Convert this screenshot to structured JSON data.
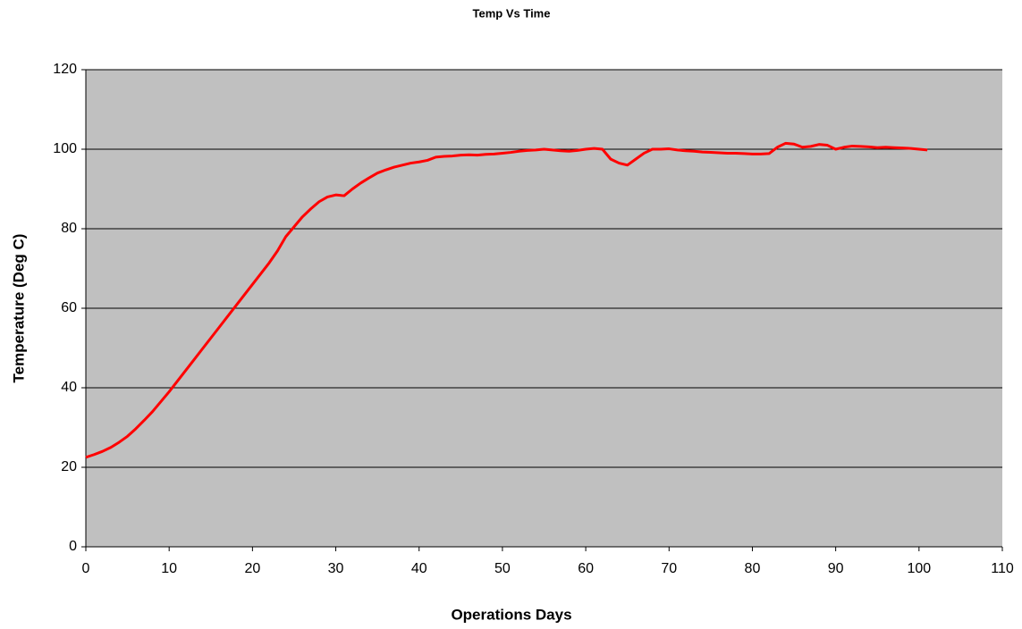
{
  "chart_data": {
    "type": "line",
    "title": "Temp Vs Time",
    "x_label": "Operations Days",
    "y_label": "Temperature (Deg C)",
    "x": [
      0,
      1,
      2,
      3,
      4,
      5,
      6,
      7,
      8,
      9,
      10,
      11,
      12,
      13,
      14,
      15,
      16,
      17,
      18,
      19,
      20,
      21,
      22,
      23,
      24,
      25,
      26,
      27,
      28,
      29,
      30,
      31,
      32,
      33,
      34,
      35,
      36,
      37,
      38,
      39,
      40,
      41,
      42,
      43,
      44,
      45,
      46,
      47,
      48,
      49,
      50,
      51,
      52,
      53,
      54,
      55,
      56,
      57,
      58,
      59,
      60,
      61,
      62,
      63,
      64,
      65,
      66,
      67,
      68,
      69,
      70,
      71,
      72,
      73,
      74,
      75,
      76,
      77,
      78,
      79,
      80,
      81,
      82,
      83,
      84,
      85,
      86,
      87,
      88,
      89,
      90,
      91,
      92,
      93,
      94,
      95,
      96,
      97,
      98,
      99,
      100,
      101
    ],
    "series": [
      {
        "name": "Temperature",
        "color": "#ff0000",
        "values": [
          22.5,
          23.2,
          24,
          25,
          26.3,
          27.8,
          29.7,
          31.8,
          34,
          36.5,
          39,
          41.7,
          44.4,
          47.1,
          49.8,
          52.5,
          55.2,
          57.9,
          60.6,
          63.3,
          66,
          68.7,
          71.4,
          74.4,
          78,
          80.5,
          83,
          85,
          86.8,
          88,
          88.5,
          88.3,
          90,
          91.5,
          92.8,
          94,
          94.8,
          95.5,
          96,
          96.5,
          96.8,
          97.2,
          98,
          98.2,
          98.3,
          98.5,
          98.6,
          98.5,
          98.7,
          98.8,
          99,
          99.2,
          99.5,
          99.7,
          99.8,
          100,
          99.8,
          99.6,
          99.5,
          99.7,
          100,
          100.2,
          100,
          97.5,
          96.5,
          96,
          97.5,
          99,
          100,
          100,
          100.1,
          99.8,
          99.6,
          99.5,
          99.3,
          99.2,
          99.1,
          99,
          99,
          98.9,
          98.8,
          98.8,
          98.9,
          100.5,
          101.5,
          101.3,
          100.5,
          100.7,
          101.2,
          101,
          100,
          100.5,
          100.8,
          100.7,
          100.6,
          100.4,
          100.5,
          100.4,
          100.3,
          100.2,
          100,
          99.8
        ]
      }
    ],
    "xlim": [
      0,
      110
    ],
    "xticks": [
      0,
      10,
      20,
      30,
      40,
      50,
      60,
      70,
      80,
      90,
      100,
      110
    ],
    "ylim": [
      0,
      120
    ],
    "yticks": [
      0,
      20,
      40,
      60,
      80,
      100,
      120
    ],
    "grid": true,
    "background": "#c0c0c0"
  }
}
